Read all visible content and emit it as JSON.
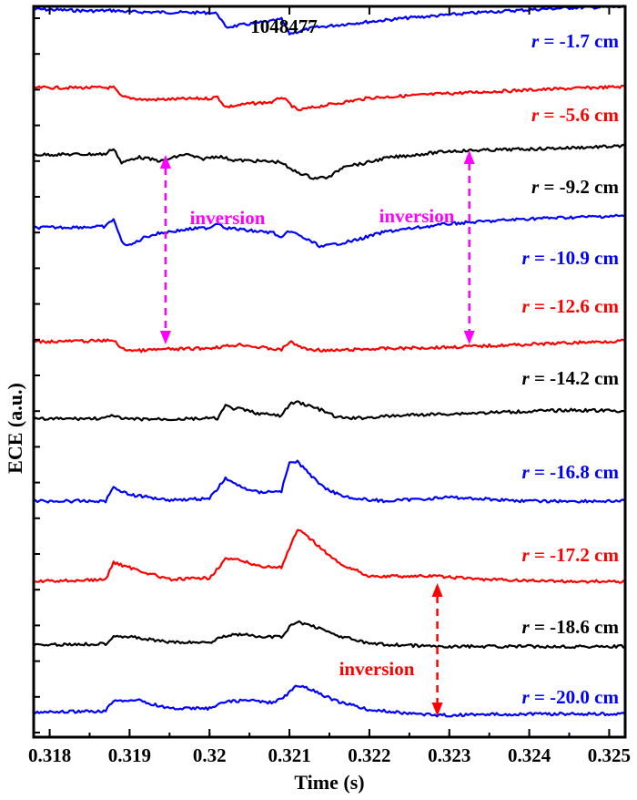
{
  "chart_data": {
    "type": "line",
    "title": "1048477",
    "xlabel": "Time (s)",
    "ylabel": "ECE (a.u.)",
    "xlim": [
      0.3178,
      0.3252
    ],
    "x_ticks": [
      "0.318",
      "0.319",
      "0.32",
      "0.321",
      "0.322",
      "0.323",
      "0.324",
      "0.325"
    ],
    "series": [
      {
        "name": "r = -1.7 cm",
        "color": "#0000ff",
        "points": [
          [
            0.3178,
            1.2
          ],
          [
            0.3185,
            1.12
          ],
          [
            0.3188,
            1.14
          ],
          [
            0.319,
            1.08
          ],
          [
            0.3195,
            1.06
          ],
          [
            0.32,
            1.04
          ],
          [
            0.3201,
            1.0
          ],
          [
            0.3202,
            0.4
          ],
          [
            0.3205,
            0.55
          ],
          [
            0.3208,
            0.68
          ],
          [
            0.3209,
            0.76
          ],
          [
            0.321,
            0.12
          ],
          [
            0.3213,
            0.38
          ],
          [
            0.3218,
            0.58
          ],
          [
            0.3225,
            0.82
          ],
          [
            0.3235,
            1.08
          ],
          [
            0.3245,
            1.26
          ],
          [
            0.3252,
            1.3
          ]
        ]
      },
      {
        "name": "r = -5.6 cm",
        "color": "#ff0000",
        "points": [
          [
            0.3178,
            0.95
          ],
          [
            0.3188,
            0.95
          ],
          [
            0.3189,
            0.55
          ],
          [
            0.3192,
            0.42
          ],
          [
            0.3196,
            0.45
          ],
          [
            0.32,
            0.48
          ],
          [
            0.3201,
            0.55
          ],
          [
            0.3202,
            0.1
          ],
          [
            0.3205,
            0.25
          ],
          [
            0.3208,
            0.32
          ],
          [
            0.3209,
            0.55
          ],
          [
            0.3211,
            -0.05
          ],
          [
            0.3214,
            0.15
          ],
          [
            0.322,
            0.5
          ],
          [
            0.323,
            0.7
          ],
          [
            0.324,
            0.85
          ],
          [
            0.3252,
            1.0
          ]
        ]
      },
      {
        "name": "r = -9.2 cm",
        "color": "#000000",
        "points": [
          [
            0.3178,
            0.92
          ],
          [
            0.3187,
            0.95
          ],
          [
            0.3188,
            1.25
          ],
          [
            0.3189,
            0.5
          ],
          [
            0.3191,
            0.8
          ],
          [
            0.3194,
            0.6
          ],
          [
            0.3197,
            0.95
          ],
          [
            0.3199,
            0.7
          ],
          [
            0.3201,
            0.85
          ],
          [
            0.3203,
            0.65
          ],
          [
            0.3206,
            0.6
          ],
          [
            0.3209,
            0.55
          ],
          [
            0.321,
            0.2
          ],
          [
            0.3213,
            -0.25
          ],
          [
            0.3215,
            -0.2
          ],
          [
            0.3217,
            0.4
          ],
          [
            0.3219,
            0.45
          ],
          [
            0.3222,
            0.75
          ],
          [
            0.323,
            1.1
          ],
          [
            0.324,
            1.2
          ],
          [
            0.3252,
            1.35
          ]
        ]
      },
      {
        "name": "r = -10.9 cm",
        "color": "#0000ff",
        "points": [
          [
            0.3178,
            0.55
          ],
          [
            0.3187,
            0.6
          ],
          [
            0.3188,
            1.0
          ],
          [
            0.3189,
            -0.15
          ],
          [
            0.319,
            -0.35
          ],
          [
            0.3192,
            0.1
          ],
          [
            0.3194,
            0.3
          ],
          [
            0.3196,
            0.4
          ],
          [
            0.3198,
            0.5
          ],
          [
            0.32,
            0.55
          ],
          [
            0.3201,
            0.8
          ],
          [
            0.3202,
            0.55
          ],
          [
            0.3205,
            0.4
          ],
          [
            0.3208,
            0.3
          ],
          [
            0.3209,
            0.0
          ],
          [
            0.321,
            0.4
          ],
          [
            0.3211,
            0.2
          ],
          [
            0.3214,
            -0.4
          ],
          [
            0.3218,
            -0.1
          ],
          [
            0.3222,
            0.35
          ],
          [
            0.323,
            0.75
          ],
          [
            0.324,
            1.0
          ],
          [
            0.3252,
            1.15
          ]
        ]
      },
      {
        "name": "r = -12.6 cm",
        "color": "#ff0000",
        "points": [
          [
            0.3178,
            0.5
          ],
          [
            0.3187,
            0.55
          ],
          [
            0.3188,
            0.6
          ],
          [
            0.3189,
            0.1
          ],
          [
            0.3191,
            0.0
          ],
          [
            0.3194,
            0.08
          ],
          [
            0.3197,
            0.1
          ],
          [
            0.32,
            0.15
          ],
          [
            0.3202,
            0.25
          ],
          [
            0.3204,
            0.35
          ],
          [
            0.3206,
            0.2
          ],
          [
            0.3209,
            0.05
          ],
          [
            0.321,
            0.5
          ],
          [
            0.3212,
            0.1
          ],
          [
            0.3215,
            0.0
          ],
          [
            0.322,
            0.1
          ],
          [
            0.3225,
            0.15
          ],
          [
            0.323,
            0.2
          ],
          [
            0.324,
            0.35
          ],
          [
            0.3252,
            0.55
          ]
        ]
      },
      {
        "name": "r = -14.2 cm",
        "color": "#000000",
        "points": [
          [
            0.3178,
            0.0
          ],
          [
            0.3187,
            0.05
          ],
          [
            0.3188,
            0.25
          ],
          [
            0.3189,
            0.0
          ],
          [
            0.3195,
            0.0
          ],
          [
            0.3201,
            0.05
          ],
          [
            0.3202,
            0.8
          ],
          [
            0.3203,
            0.65
          ],
          [
            0.3204,
            0.6
          ],
          [
            0.3206,
            0.35
          ],
          [
            0.3209,
            0.2
          ],
          [
            0.321,
            0.9
          ],
          [
            0.3211,
            1.05
          ],
          [
            0.3214,
            0.55
          ],
          [
            0.3216,
            0.1
          ],
          [
            0.3218,
            0.05
          ],
          [
            0.3225,
            0.25
          ],
          [
            0.3235,
            0.4
          ],
          [
            0.3245,
            0.55
          ],
          [
            0.3252,
            0.5
          ]
        ]
      },
      {
        "name": "r = -16.8 cm",
        "color": "#0000ff",
        "points": [
          [
            0.3178,
            0.0
          ],
          [
            0.3187,
            0.0
          ],
          [
            0.3188,
            0.55
          ],
          [
            0.319,
            0.25
          ],
          [
            0.3195,
            0.05
          ],
          [
            0.32,
            0.1
          ],
          [
            0.3202,
            0.9
          ],
          [
            0.3203,
            0.7
          ],
          [
            0.3204,
            0.55
          ],
          [
            0.3206,
            0.35
          ],
          [
            0.3209,
            0.4
          ],
          [
            0.321,
            1.5
          ],
          [
            0.3211,
            1.55
          ],
          [
            0.3213,
            0.9
          ],
          [
            0.3215,
            0.4
          ],
          [
            0.3218,
            0.1
          ],
          [
            0.3222,
            0.0
          ],
          [
            0.323,
            0.15
          ],
          [
            0.324,
            0.0
          ],
          [
            0.3252,
            0.0
          ]
        ]
      },
      {
        "name": "r = -17.2 cm",
        "color": "#ff0000",
        "points": [
          [
            0.3178,
            0.05
          ],
          [
            0.3187,
            0.1
          ],
          [
            0.3188,
            0.6
          ],
          [
            0.319,
            0.45
          ],
          [
            0.3195,
            0.1
          ],
          [
            0.32,
            0.15
          ],
          [
            0.3202,
            0.7
          ],
          [
            0.3204,
            0.65
          ],
          [
            0.3206,
            0.5
          ],
          [
            0.3209,
            0.45
          ],
          [
            0.321,
            1.0
          ],
          [
            0.3211,
            1.55
          ],
          [
            0.3213,
            1.2
          ],
          [
            0.3216,
            0.6
          ],
          [
            0.322,
            0.2
          ],
          [
            0.3228,
            0.2
          ],
          [
            0.3235,
            0.1
          ],
          [
            0.3245,
            0.05
          ],
          [
            0.3252,
            0.05
          ]
        ]
      },
      {
        "name": "r = -18.6 cm",
        "color": "#000000",
        "points": [
          [
            0.3178,
            0.0
          ],
          [
            0.3187,
            0.05
          ],
          [
            0.3188,
            0.35
          ],
          [
            0.319,
            0.3
          ],
          [
            0.3195,
            0.1
          ],
          [
            0.32,
            0.1
          ],
          [
            0.3202,
            0.35
          ],
          [
            0.3204,
            0.4
          ],
          [
            0.3206,
            0.3
          ],
          [
            0.3209,
            0.3
          ],
          [
            0.321,
            0.65
          ],
          [
            0.3211,
            0.85
          ],
          [
            0.3213,
            0.7
          ],
          [
            0.3216,
            0.35
          ],
          [
            0.322,
            0.05
          ],
          [
            0.3228,
            -0.05
          ],
          [
            0.324,
            -0.05
          ],
          [
            0.3252,
            -0.05
          ]
        ]
      },
      {
        "name": "r = -20.0 cm",
        "color": "#0000ff",
        "points": [
          [
            0.3178,
            0.0
          ],
          [
            0.3187,
            0.05
          ],
          [
            0.3188,
            0.45
          ],
          [
            0.3191,
            0.45
          ],
          [
            0.3195,
            0.15
          ],
          [
            0.32,
            0.15
          ],
          [
            0.3202,
            0.4
          ],
          [
            0.3205,
            0.45
          ],
          [
            0.3208,
            0.35
          ],
          [
            0.3209,
            0.5
          ],
          [
            0.3211,
            1.0
          ],
          [
            0.3213,
            0.8
          ],
          [
            0.3216,
            0.4
          ],
          [
            0.322,
            0.1
          ],
          [
            0.3228,
            -0.1
          ],
          [
            0.324,
            -0.05
          ],
          [
            0.3252,
            -0.05
          ]
        ]
      }
    ],
    "annotations": [
      {
        "text": "inversion",
        "color": "#ff00ff",
        "x": 0.3199,
        "arrow_x": 0.31945,
        "between": [
          "r = -9.2 cm",
          "r = -12.6 cm"
        ]
      },
      {
        "text": "inversion",
        "color": "#ff00ff",
        "x": 0.3227,
        "arrow_x": 0.32325,
        "between": [
          "r = -9.2 cm",
          "r = -12.6 cm"
        ]
      },
      {
        "text": "inversion",
        "color": "#ff0000",
        "x": 0.3222,
        "arrow_x": 0.32285,
        "between": [
          "r = -17.2 cm",
          "r = -20.0 cm"
        ]
      }
    ],
    "grid": false,
    "legend": "inline labels on right"
  }
}
